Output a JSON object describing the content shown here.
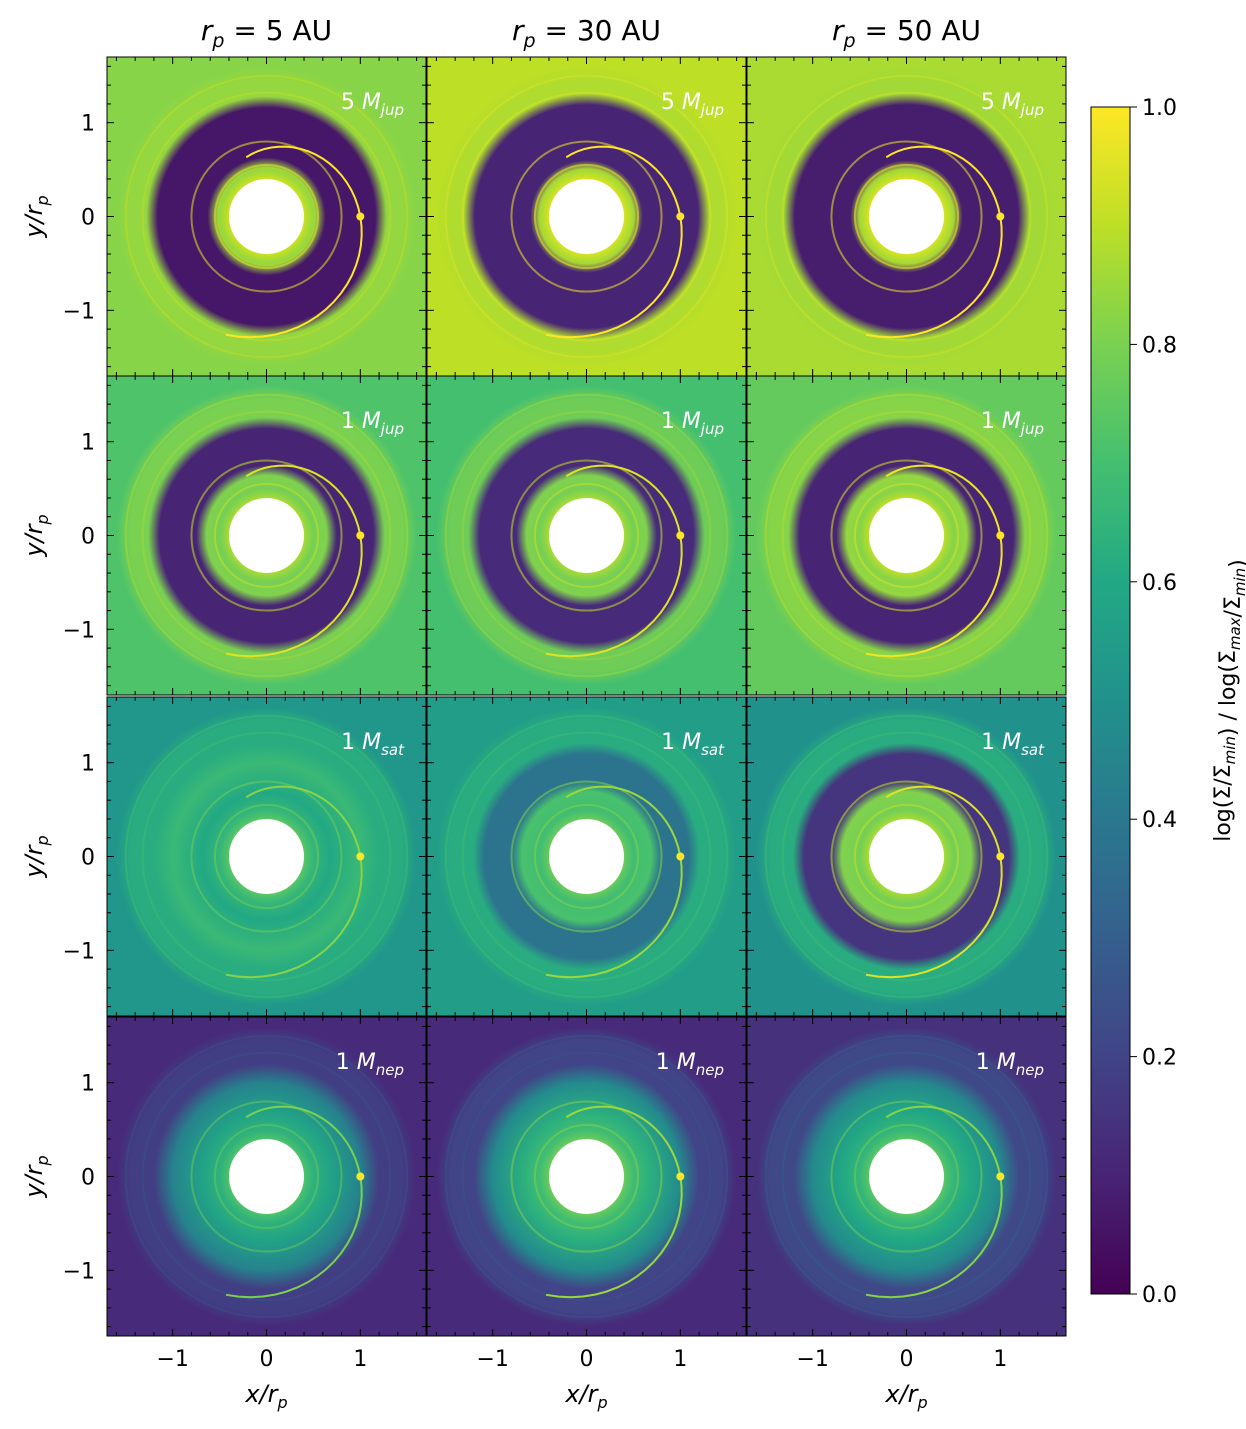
{
  "chart_data": {
    "type": "heatmap",
    "description_free": true,
    "column_titles": [
      {
        "prefix": "r",
        "sub": "p",
        "suffix": " = 5 AU"
      },
      {
        "prefix": "r",
        "sub": "p",
        "suffix": " = 30 AU"
      },
      {
        "prefix": "r",
        "sub": "p",
        "suffix": " = 50 AU"
      }
    ],
    "row_labels": [
      {
        "num": "5 ",
        "M": "M",
        "sub": "jup"
      },
      {
        "num": "1 ",
        "M": "M",
        "sub": "jup"
      },
      {
        "num": "1 ",
        "M": "M",
        "sub": "sat"
      },
      {
        "num": "1 ",
        "M": "M",
        "sub": "nep"
      }
    ],
    "xlabel": {
      "main": "x/r",
      "sub": "p"
    },
    "ylabel": {
      "main": "y/r",
      "sub": "p"
    },
    "xlim": [
      -1.7,
      1.7
    ],
    "ylim": [
      -1.7,
      1.7
    ],
    "xticks": [
      -1,
      0,
      1
    ],
    "yticks": [
      -1,
      0,
      1
    ],
    "xtick_labels": [
      "−1",
      "0",
      "1"
    ],
    "ytick_labels": [
      "−1",
      "0",
      "1"
    ],
    "colorbar": {
      "label": "log(Σ/Σmin) / log(Σmax/Σmin)",
      "label_parts": [
        {
          "t": "log(Σ/Σ",
          "s": ""
        },
        {
          "t": "",
          "s": "min"
        },
        {
          "t": ") / log(Σ",
          "s": ""
        },
        {
          "t": "",
          "s": "max"
        },
        {
          "t": "/Σ",
          "s": ""
        },
        {
          "t": "",
          "s": "min"
        },
        {
          "t": ")",
          "s": ""
        }
      ],
      "range": [
        0.0,
        1.0
      ],
      "ticks": [
        0.0,
        0.2,
        0.4,
        0.6,
        0.8,
        1.0
      ],
      "tick_labels": [
        "0.0",
        "0.2",
        "0.4",
        "0.6",
        "0.8",
        "1.0"
      ],
      "colormap": "viridis"
    },
    "panels": [
      {
        "row": 0,
        "col": 0,
        "background": 0.82,
        "gap_inner": 0.58,
        "gap_outer": 1.22,
        "gap_level": 0.06,
        "inner_ring": 0.9,
        "outer_ring": 0.84
      },
      {
        "row": 0,
        "col": 1,
        "background": 0.9,
        "gap_inner": 0.55,
        "gap_outer": 1.25,
        "gap_level": 0.1,
        "inner_ring": 0.92,
        "outer_ring": 0.88
      },
      {
        "row": 0,
        "col": 2,
        "background": 0.87,
        "gap_inner": 0.55,
        "gap_outer": 1.25,
        "gap_level": 0.08,
        "inner_ring": 0.92,
        "outer_ring": 0.86
      },
      {
        "row": 1,
        "col": 0,
        "background": 0.72,
        "gap_inner": 0.7,
        "gap_outer": 1.2,
        "gap_level": 0.1,
        "inner_ring": 0.85,
        "outer_ring": 0.8
      },
      {
        "row": 1,
        "col": 1,
        "background": 0.7,
        "gap_inner": 0.7,
        "gap_outer": 1.2,
        "gap_level": 0.12,
        "inner_ring": 0.85,
        "outer_ring": 0.78
      },
      {
        "row": 1,
        "col": 2,
        "background": 0.76,
        "gap_inner": 0.7,
        "gap_outer": 1.2,
        "gap_level": 0.1,
        "inner_ring": 0.88,
        "outer_ring": 0.82
      },
      {
        "row": 2,
        "col": 0,
        "background": 0.52,
        "gap_inner": 0.0,
        "gap_outer": 0.0,
        "gap_level": 0.5,
        "inner_ring": 0.72,
        "outer_ring": 0.62
      },
      {
        "row": 2,
        "col": 1,
        "background": 0.55,
        "gap_inner": 0.75,
        "gap_outer": 1.15,
        "gap_level": 0.38,
        "inner_ring": 0.75,
        "outer_ring": 0.62
      },
      {
        "row": 2,
        "col": 2,
        "background": 0.5,
        "gap_inner": 0.75,
        "gap_outer": 1.15,
        "gap_level": 0.15,
        "inner_ring": 0.85,
        "outer_ring": 0.62
      },
      {
        "row": 3,
        "col": 0,
        "background": 0.12,
        "gap_inner": 0.0,
        "gap_outer": 0.0,
        "gap_level": 0.1,
        "inner_ring": 0.7,
        "outer_ring": 0.18
      },
      {
        "row": 3,
        "col": 1,
        "background": 0.12,
        "gap_inner": 0.0,
        "gap_outer": 0.0,
        "gap_level": 0.1,
        "inner_ring": 0.75,
        "outer_ring": 0.2
      },
      {
        "row": 3,
        "col": 2,
        "background": 0.14,
        "gap_inner": 0.0,
        "gap_outer": 0.0,
        "gap_level": 0.1,
        "inner_ring": 0.72,
        "outer_ring": 0.22
      }
    ]
  }
}
